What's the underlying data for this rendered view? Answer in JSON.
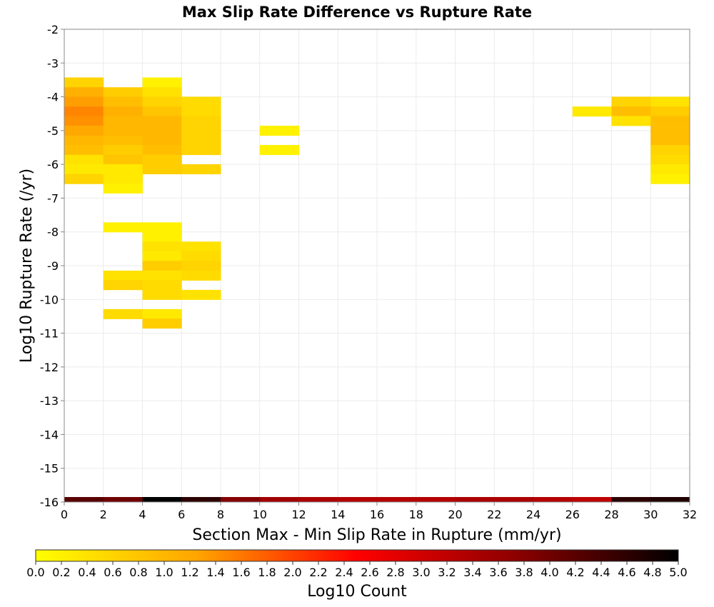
{
  "chart_data": {
    "type": "heatmap",
    "title": "Max Slip Rate Difference vs Rupture Rate",
    "xlabel": "Section Max - Min Slip Rate in Rupture (mm/yr)",
    "ylabel": "Log10 Rupture Rate (/yr)",
    "xlim": [
      0,
      32
    ],
    "ylim": [
      -16,
      -2
    ],
    "x_ticks": [
      "0",
      "2",
      "4",
      "6",
      "8",
      "10",
      "12",
      "14",
      "16",
      "18",
      "20",
      "22",
      "24",
      "26",
      "28",
      "30",
      "32"
    ],
    "y_ticks": [
      "-2",
      "-3",
      "-4",
      "-5",
      "-6",
      "-7",
      "-8",
      "-9",
      "-10",
      "-11",
      "-12",
      "-13",
      "-14",
      "-15",
      "-16"
    ],
    "grid": true,
    "x_bin_width": 2,
    "y_bin_height": 0.2857,
    "cells": [
      {
        "x": 0,
        "y": -3.57,
        "v": 0.6
      },
      {
        "x": 0,
        "y": -3.86,
        "v": 1.1
      },
      {
        "x": 0,
        "y": -4.14,
        "v": 1.3
      },
      {
        "x": 0,
        "y": -4.43,
        "v": 1.5
      },
      {
        "x": 0,
        "y": -4.71,
        "v": 1.4
      },
      {
        "x": 0,
        "y": -5.0,
        "v": 1.2
      },
      {
        "x": 0,
        "y": -5.29,
        "v": 1.0
      },
      {
        "x": 0,
        "y": -5.57,
        "v": 0.9
      },
      {
        "x": 0,
        "y": -5.86,
        "v": 0.4
      },
      {
        "x": 0,
        "y": -6.14,
        "v": 0.3
      },
      {
        "x": 0,
        "y": -6.43,
        "v": 0.6
      },
      {
        "x": 2,
        "y": -3.86,
        "v": 0.7
      },
      {
        "x": 2,
        "y": -4.14,
        "v": 0.9
      },
      {
        "x": 2,
        "y": -4.43,
        "v": 1.1
      },
      {
        "x": 2,
        "y": -4.71,
        "v": 1.0
      },
      {
        "x": 2,
        "y": -5.0,
        "v": 1.0
      },
      {
        "x": 2,
        "y": -5.29,
        "v": 0.9
      },
      {
        "x": 2,
        "y": -5.57,
        "v": 0.7
      },
      {
        "x": 2,
        "y": -5.86,
        "v": 0.8
      },
      {
        "x": 2,
        "y": -6.14,
        "v": 0.3
      },
      {
        "x": 2,
        "y": -6.43,
        "v": 0.3
      },
      {
        "x": 2,
        "y": -6.71,
        "v": 0.2
      },
      {
        "x": 2,
        "y": -7.86,
        "v": 0.2
      },
      {
        "x": 2,
        "y": -9.29,
        "v": 0.4
      },
      {
        "x": 2,
        "y": -9.57,
        "v": 0.6
      },
      {
        "x": 2,
        "y": -10.43,
        "v": 0.5
      },
      {
        "x": 4,
        "y": -3.57,
        "v": 0.2
      },
      {
        "x": 4,
        "y": -3.86,
        "v": 0.4
      },
      {
        "x": 4,
        "y": -4.14,
        "v": 0.6
      },
      {
        "x": 4,
        "y": -4.43,
        "v": 0.8
      },
      {
        "x": 4,
        "y": -4.71,
        "v": 1.0
      },
      {
        "x": 4,
        "y": -5.0,
        "v": 1.0
      },
      {
        "x": 4,
        "y": -5.29,
        "v": 1.0
      },
      {
        "x": 4,
        "y": -5.57,
        "v": 0.9
      },
      {
        "x": 4,
        "y": -5.86,
        "v": 0.7
      },
      {
        "x": 4,
        "y": -6.14,
        "v": 0.7
      },
      {
        "x": 4,
        "y": -7.86,
        "v": 0.2
      },
      {
        "x": 4,
        "y": -8.14,
        "v": 0.2
      },
      {
        "x": 4,
        "y": -8.43,
        "v": 0.4
      },
      {
        "x": 4,
        "y": -8.71,
        "v": 0.3
      },
      {
        "x": 4,
        "y": -9.0,
        "v": 0.7
      },
      {
        "x": 4,
        "y": -9.29,
        "v": 0.4
      },
      {
        "x": 4,
        "y": -9.57,
        "v": 0.5
      },
      {
        "x": 4,
        "y": -9.86,
        "v": 0.5
      },
      {
        "x": 4,
        "y": -10.43,
        "v": 0.3
      },
      {
        "x": 4,
        "y": -10.71,
        "v": 0.7
      },
      {
        "x": 6,
        "y": -4.14,
        "v": 0.5
      },
      {
        "x": 6,
        "y": -4.43,
        "v": 0.5
      },
      {
        "x": 6,
        "y": -4.71,
        "v": 0.6
      },
      {
        "x": 6,
        "y": -5.0,
        "v": 0.6
      },
      {
        "x": 6,
        "y": -5.29,
        "v": 0.6
      },
      {
        "x": 6,
        "y": -5.57,
        "v": 0.6
      },
      {
        "x": 6,
        "y": -6.14,
        "v": 0.6
      },
      {
        "x": 6,
        "y": -8.43,
        "v": 0.4
      },
      {
        "x": 6,
        "y": -8.71,
        "v": 0.5
      },
      {
        "x": 6,
        "y": -9.0,
        "v": 0.6
      },
      {
        "x": 6,
        "y": -9.29,
        "v": 0.5
      },
      {
        "x": 6,
        "y": -9.86,
        "v": 0.4
      },
      {
        "x": 10,
        "y": -5.0,
        "v": 0.2
      },
      {
        "x": 10,
        "y": -5.57,
        "v": 0.2
      },
      {
        "x": 26,
        "y": -4.43,
        "v": 0.3
      },
      {
        "x": 28,
        "y": -4.14,
        "v": 0.6
      },
      {
        "x": 28,
        "y": -4.43,
        "v": 0.9
      },
      {
        "x": 28,
        "y": -4.71,
        "v": 0.4
      },
      {
        "x": 30,
        "y": -4.14,
        "v": 0.4
      },
      {
        "x": 30,
        "y": -4.43,
        "v": 0.7
      },
      {
        "x": 30,
        "y": -4.71,
        "v": 0.9
      },
      {
        "x": 30,
        "y": -5.0,
        "v": 0.9
      },
      {
        "x": 30,
        "y": -5.29,
        "v": 0.9
      },
      {
        "x": 30,
        "y": -5.57,
        "v": 0.6
      },
      {
        "x": 30,
        "y": -5.86,
        "v": 0.5
      },
      {
        "x": 30,
        "y": -6.14,
        "v": 0.3
      },
      {
        "x": 30,
        "y": -6.43,
        "v": 0.2
      }
    ],
    "bottom_strip": [
      {
        "x": 0,
        "v": 4.2
      },
      {
        "x": 2,
        "v": 4.0
      },
      {
        "x": 4,
        "v": 5.0
      },
      {
        "x": 6,
        "v": 4.6
      },
      {
        "x": 8,
        "v": 3.8
      },
      {
        "x": 10,
        "v": 3.5
      },
      {
        "x": 12,
        "v": 3.4
      },
      {
        "x": 14,
        "v": 3.3
      },
      {
        "x": 16,
        "v": 3.3
      },
      {
        "x": 18,
        "v": 3.3
      },
      {
        "x": 20,
        "v": 3.4
      },
      {
        "x": 22,
        "v": 3.4
      },
      {
        "x": 24,
        "v": 3.3
      },
      {
        "x": 26,
        "v": 3.2
      },
      {
        "x": 28,
        "v": 4.6
      },
      {
        "x": 30,
        "v": 4.7
      }
    ],
    "colorbar": {
      "label": "Log10 Count",
      "range": [
        0.0,
        5.0
      ],
      "ticks": [
        "0.0",
        "0.2",
        "0.4",
        "0.6",
        "0.8",
        "1.0",
        "1.2",
        "1.4",
        "1.6",
        "1.8",
        "2.0",
        "2.2",
        "2.4",
        "2.6",
        "2.8",
        "3.0",
        "3.2",
        "3.4",
        "3.6",
        "3.8",
        "4.0",
        "4.2",
        "4.4",
        "4.6",
        "4.8",
        "5.0"
      ],
      "colors": [
        "#ffff00",
        "#ffa500",
        "#ff0000",
        "#8b0000",
        "#000000"
      ]
    }
  }
}
